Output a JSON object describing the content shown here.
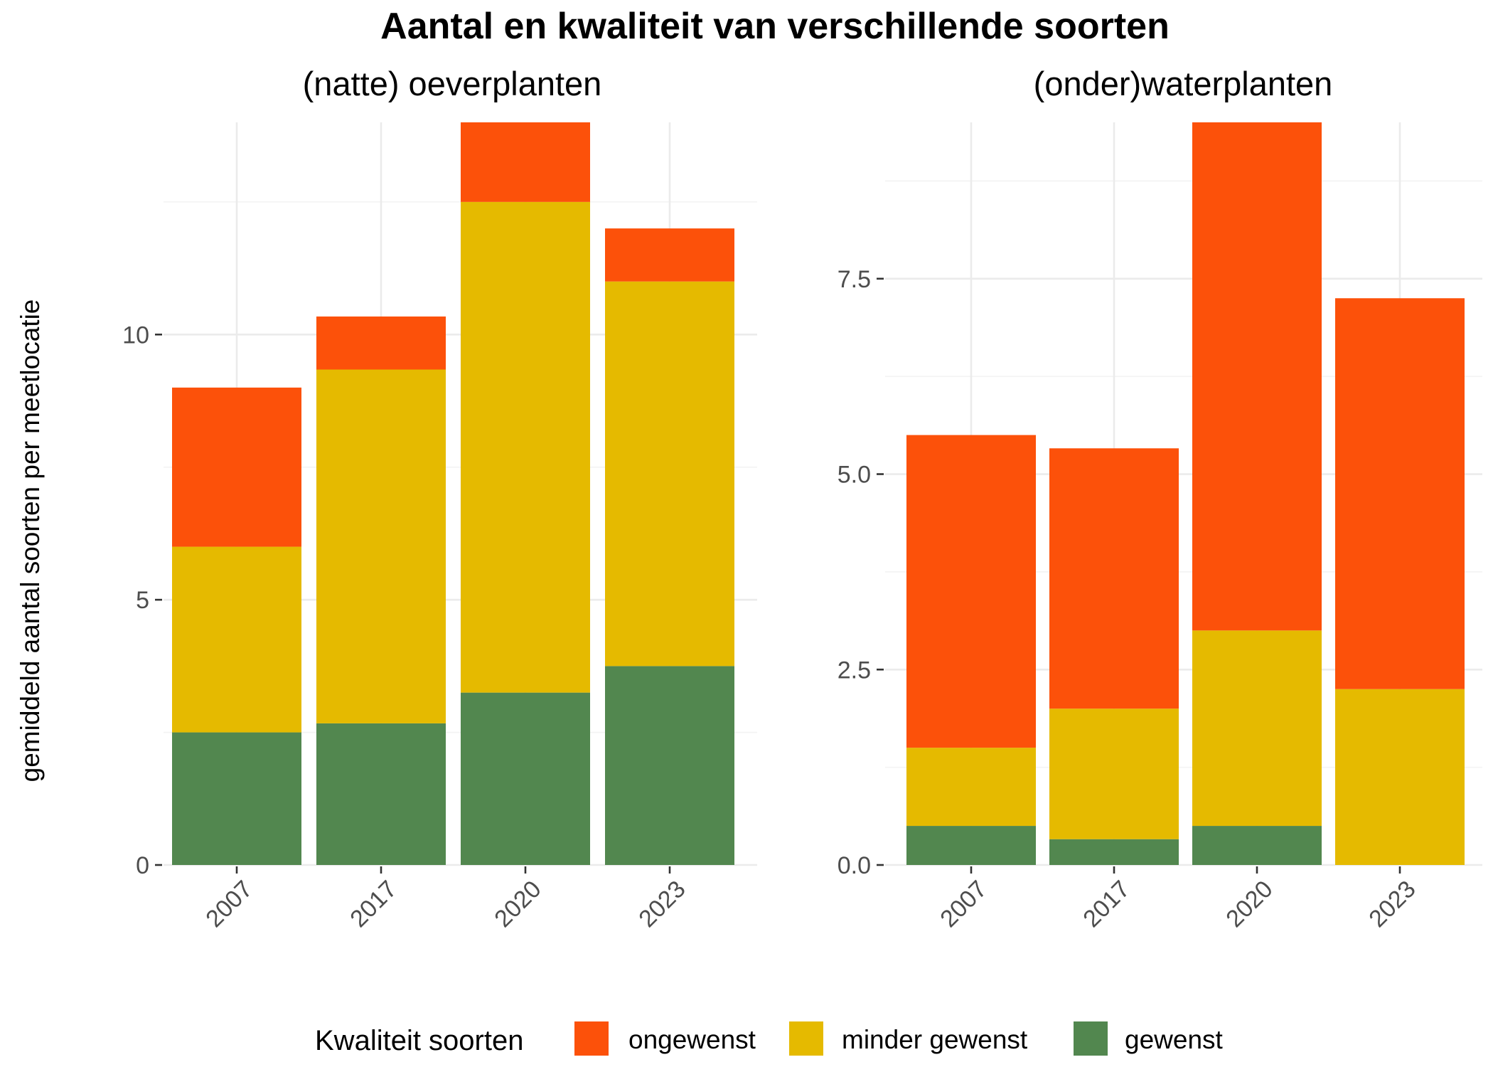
{
  "chart_data": {
    "type": "bar",
    "stacked": true,
    "title": "Aantal en kwaliteit van verschillende soorten",
    "ylabel": "gemiddeld aantal soorten per meetlocatie",
    "legend": {
      "title": "Kwaliteit soorten",
      "position": "bottom",
      "entries": [
        {
          "name": "ongewenst",
          "color": "#FC510A"
        },
        {
          "name": "minder gewenst",
          "color": "#E5BA00"
        },
        {
          "name": "gewenst",
          "color": "#52874F"
        }
      ]
    },
    "panels": [
      {
        "title": "(natte) oeverplanten",
        "categories": [
          "2007",
          "2017",
          "2020",
          "2023"
        ],
        "ylim": [
          0,
          14
        ],
        "yticks": [
          0,
          5,
          10
        ],
        "ytick_labels": [
          "0",
          "5",
          "10"
        ],
        "series": [
          {
            "name": "gewenst",
            "values": [
              2.5,
              2.67,
              3.25,
              3.75
            ]
          },
          {
            "name": "minder gewenst",
            "values": [
              3.5,
              6.67,
              9.25,
              7.25
            ]
          },
          {
            "name": "ongewenst",
            "values": [
              3.0,
              1.0,
              1.5,
              1.0
            ]
          }
        ]
      },
      {
        "title": "(onder)waterplanten",
        "categories": [
          "2007",
          "2017",
          "2020",
          "2023"
        ],
        "ylim": [
          0,
          9.5
        ],
        "yticks": [
          0,
          2.5,
          5,
          7.5
        ],
        "ytick_labels": [
          "0.0",
          "2.5",
          "5.0",
          "7.5"
        ],
        "series": [
          {
            "name": "gewenst",
            "values": [
              0.5,
              0.33,
              0.5,
              0
            ]
          },
          {
            "name": "minder gewenst",
            "values": [
              1.0,
              1.67,
              2.5,
              2.25
            ]
          },
          {
            "name": "ongewenst",
            "values": [
              4.0,
              3.33,
              6.5,
              5.0
            ]
          }
        ]
      }
    ]
  }
}
